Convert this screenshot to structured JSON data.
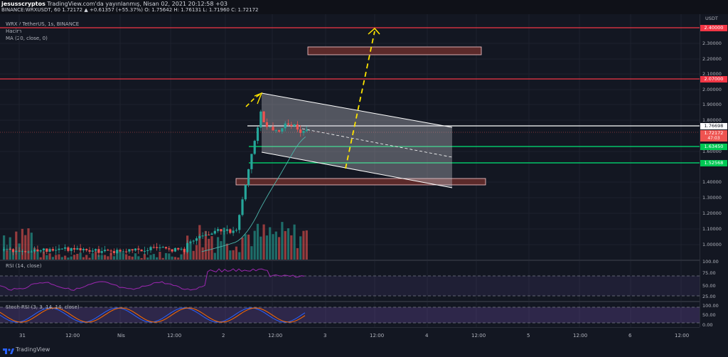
{
  "header": {
    "user": "jesusscryptos",
    "published": "TradingView.com'da yayınlanmış, Nisan 02, 2021 20:12:58 +03",
    "quote": "BINANCE:WRXUSDT, 60 1.72172 ▲ +0.61357 (+55.37%) O: 1.75642 H: 1.76131 L: 1.71960 C: 1.72172"
  },
  "legend": {
    "symbol": "WRX / TetherUS, 1s, BINANCE",
    "volume": "Hacim",
    "ma": "MA (20, close, 0)",
    "rsi": "RSI (14, close)",
    "stoch": "Stoch RSI (3, 3, 14, 14, close)"
  },
  "price_axis": {
    "currency": "USDT",
    "labels": [
      "2.30000",
      "2.20000",
      "2.10000",
      "2.00000",
      "1.90000",
      "1.80000",
      "1.60000",
      "1.40000",
      "1.30000",
      "1.20000",
      "1.10000",
      "1.00000"
    ],
    "tags": {
      "top": "2.40000",
      "red": "2.07000",
      "white": "1.76698",
      "current": "1.72172",
      "countdown": "47:03",
      "green1": "1.63450",
      "green2": "1.52568"
    }
  },
  "rsi_axis": [
    "100.00",
    "75.00",
    "50.00",
    "25.00"
  ],
  "stoch_axis": [
    "100.00",
    "50.00",
    "0.00"
  ],
  "time_axis": [
    "31",
    "12:00",
    "Nis",
    "12:00",
    "2",
    "12:00",
    "3",
    "12:00",
    "4",
    "12:00",
    "5",
    "12:00",
    "6",
    "12:00"
  ],
  "colors": {
    "background": "#131722",
    "bull": "#26a69a",
    "bear": "#ef5350",
    "resistance": "#f23645",
    "support": "#00e676",
    "projection": "#ffe500",
    "rsi": "#9c27b0"
  },
  "footer": {
    "brand": "TradingView"
  }
}
